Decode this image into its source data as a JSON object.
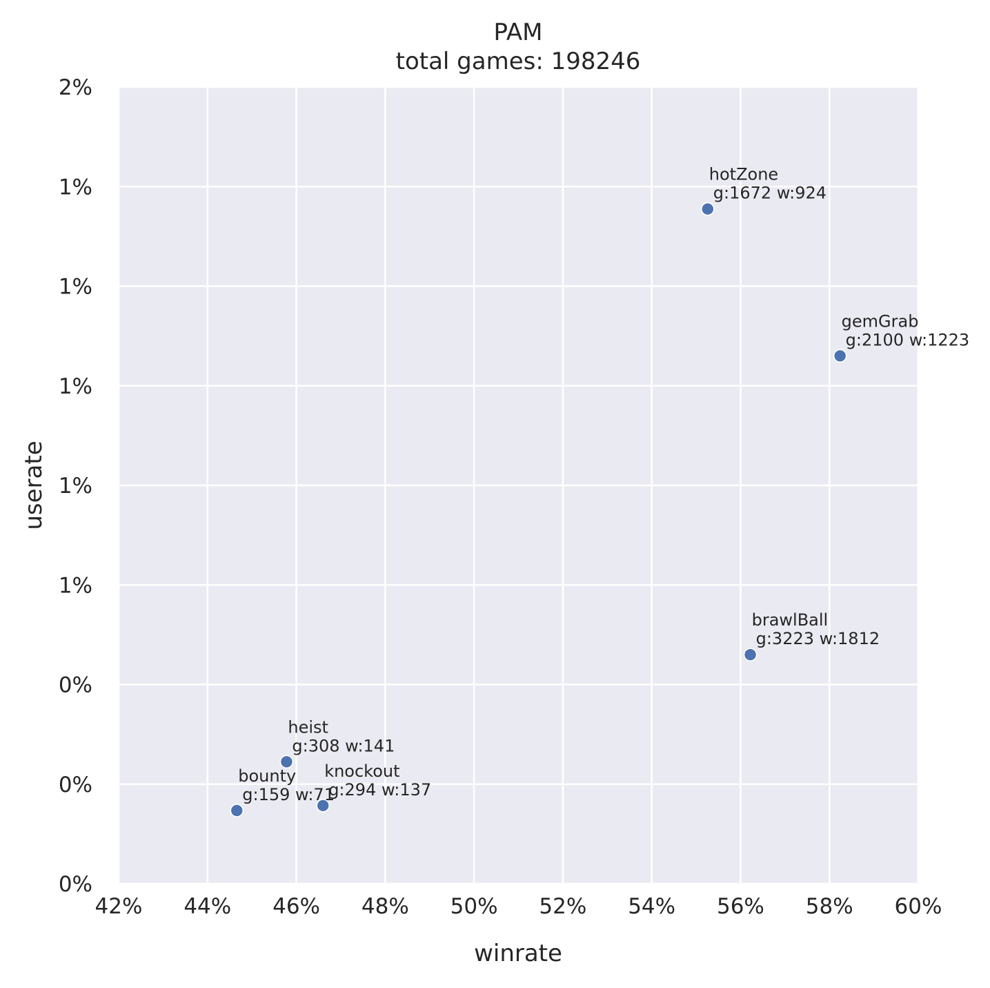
{
  "chart_data": {
    "type": "scatter",
    "title": "PAM",
    "subtitle": "total games: 198246",
    "xlabel": "winrate",
    "ylabel": "userate",
    "xlim": [
      0.42,
      0.6
    ],
    "ylim": [
      0.0,
      0.016
    ],
    "xticks": [
      0.42,
      0.44,
      0.46,
      0.48,
      0.5,
      0.52,
      0.54,
      0.56,
      0.58,
      0.6
    ],
    "xtick_labels": [
      "42%",
      "44%",
      "46%",
      "48%",
      "50%",
      "52%",
      "54%",
      "56%",
      "58%",
      "60%"
    ],
    "yticks": [
      0.0,
      0.002,
      0.004,
      0.006,
      0.008,
      0.01,
      0.012,
      0.014,
      0.016
    ],
    "ytick_labels": [
      "0%",
      "0%",
      "0%",
      "1%",
      "1%",
      "1%",
      "1%",
      "1%",
      "2%"
    ],
    "grid": true,
    "background": "#eaeaf2",
    "grid_color": "#ffffff",
    "point_color": "#4c72b0",
    "points": [
      {
        "name": "hotZone",
        "stats": "g:1672 w:924",
        "x": 0.5526,
        "y": 0.01355
      },
      {
        "name": "gemGrab",
        "stats": "g:2100 w:1223",
        "x": 0.5824,
        "y": 0.0106
      },
      {
        "name": "brawlBall",
        "stats": "g:3223 w:1812",
        "x": 0.5622,
        "y": 0.0046
      },
      {
        "name": "heist",
        "stats": "g:308 w:141",
        "x": 0.4578,
        "y": 0.00245
      },
      {
        "name": "knockout",
        "stats": "g:294 w:137",
        "x": 0.466,
        "y": 0.00157
      },
      {
        "name": "bounty",
        "stats": "g:159 w:71",
        "x": 0.4466,
        "y": 0.00147
      }
    ]
  }
}
